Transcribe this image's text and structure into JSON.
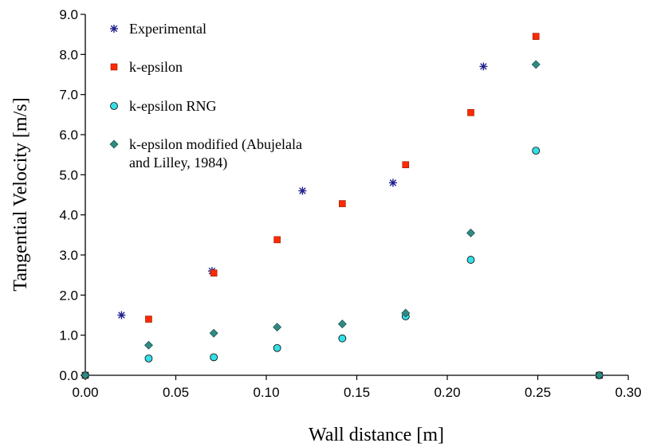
{
  "chart_data": {
    "type": "scatter",
    "title": "",
    "xlabel": "Wall distance [m]",
    "ylabel": "Tangential Velocity [m/s]",
    "xlim": [
      0,
      0.3
    ],
    "ylim": [
      0,
      9
    ],
    "x_ticks": [
      "0.00",
      "0.05",
      "0.10",
      "0.15",
      "0.20",
      "0.25",
      "0.30"
    ],
    "y_ticks": [
      "0.0",
      "1.0",
      "2.0",
      "3.0",
      "4.0",
      "5.0",
      "6.0",
      "7.0",
      "8.0",
      "9.0"
    ],
    "grid": false,
    "legend_position": "top-left",
    "series": [
      {
        "name": "Experimental",
        "marker": "asterisk",
        "color": "#1f1f8f",
        "points": [
          [
            0.0,
            0.0
          ],
          [
            0.02,
            1.5
          ],
          [
            0.07,
            2.6
          ],
          [
            0.12,
            4.6
          ],
          [
            0.17,
            4.8
          ],
          [
            0.22,
            7.7
          ]
        ]
      },
      {
        "name": "k-epsilon",
        "marker": "square",
        "color": "#ff2a00",
        "points": [
          [
            0.0,
            0.0
          ],
          [
            0.035,
            1.4
          ],
          [
            0.071,
            2.55
          ],
          [
            0.106,
            3.38
          ],
          [
            0.142,
            4.28
          ],
          [
            0.177,
            5.25
          ],
          [
            0.213,
            6.55
          ],
          [
            0.249,
            8.45
          ],
          [
            0.284,
            0.0
          ]
        ]
      },
      {
        "name": "k-epsilon RNG",
        "marker": "circle",
        "color": "#33e0e6",
        "points": [
          [
            0.0,
            0.0
          ],
          [
            0.035,
            0.42
          ],
          [
            0.071,
            0.45
          ],
          [
            0.106,
            0.68
          ],
          [
            0.142,
            0.92
          ],
          [
            0.177,
            1.47
          ],
          [
            0.213,
            2.88
          ],
          [
            0.249,
            5.6
          ],
          [
            0.284,
            0.0
          ]
        ]
      },
      {
        "name": "k-epsilon modified (Abujelala and Lilley, 1984)",
        "name_lines": [
          "k-epsilon modified (Abujelala",
          "and Lilley, 1984)"
        ],
        "marker": "diamond",
        "color": "#2e8b84",
        "points": [
          [
            0.0,
            0.0
          ],
          [
            0.035,
            0.75
          ],
          [
            0.071,
            1.05
          ],
          [
            0.106,
            1.2
          ],
          [
            0.142,
            1.28
          ],
          [
            0.177,
            1.55
          ],
          [
            0.213,
            3.55
          ],
          [
            0.249,
            7.75
          ],
          [
            0.284,
            0.0
          ]
        ]
      }
    ]
  }
}
